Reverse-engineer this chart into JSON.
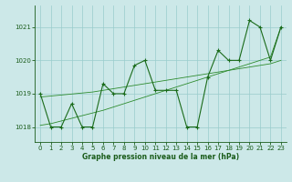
{
  "x": [
    0,
    1,
    2,
    3,
    4,
    5,
    6,
    7,
    8,
    9,
    10,
    11,
    12,
    13,
    14,
    15,
    16,
    17,
    18,
    19,
    20,
    21,
    22,
    23
  ],
  "y_main": [
    1019.0,
    1018.0,
    1018.0,
    1018.7,
    1018.0,
    1018.0,
    1019.3,
    1019.0,
    1019.0,
    1019.85,
    1020.0,
    1019.1,
    1019.1,
    1019.1,
    1018.0,
    1018.0,
    1019.5,
    1020.3,
    1020.0,
    1020.0,
    1021.2,
    1021.0,
    1020.0,
    1021.0
  ],
  "y_trend1": [
    1018.05,
    1018.1,
    1018.18,
    1018.26,
    1018.34,
    1018.42,
    1018.5,
    1018.6,
    1018.7,
    1018.8,
    1018.9,
    1019.0,
    1019.1,
    1019.2,
    1019.3,
    1019.4,
    1019.5,
    1019.6,
    1019.7,
    1019.8,
    1019.9,
    1020.0,
    1020.1,
    1021.0
  ],
  "y_trend2": [
    1018.9,
    1018.93,
    1018.96,
    1018.99,
    1019.02,
    1019.05,
    1019.1,
    1019.15,
    1019.2,
    1019.25,
    1019.3,
    1019.35,
    1019.4,
    1019.45,
    1019.5,
    1019.55,
    1019.6,
    1019.65,
    1019.7,
    1019.75,
    1019.8,
    1019.85,
    1019.9,
    1020.0
  ],
  "color_main": "#1a6b1a",
  "color_trend": "#2d8b2d",
  "bg_color": "#cce8e8",
  "grid_color": "#99cccc",
  "label_color": "#1a5c1a",
  "xlabel": "Graphe pression niveau de la mer (hPa)",
  "yticks": [
    1018,
    1019,
    1020,
    1021
  ],
  "xticks": [
    0,
    1,
    2,
    3,
    4,
    5,
    6,
    7,
    8,
    9,
    10,
    11,
    12,
    13,
    14,
    15,
    16,
    17,
    18,
    19,
    20,
    21,
    22,
    23
  ],
  "ylim": [
    1017.55,
    1021.65
  ],
  "xlim": [
    -0.5,
    23.5
  ]
}
